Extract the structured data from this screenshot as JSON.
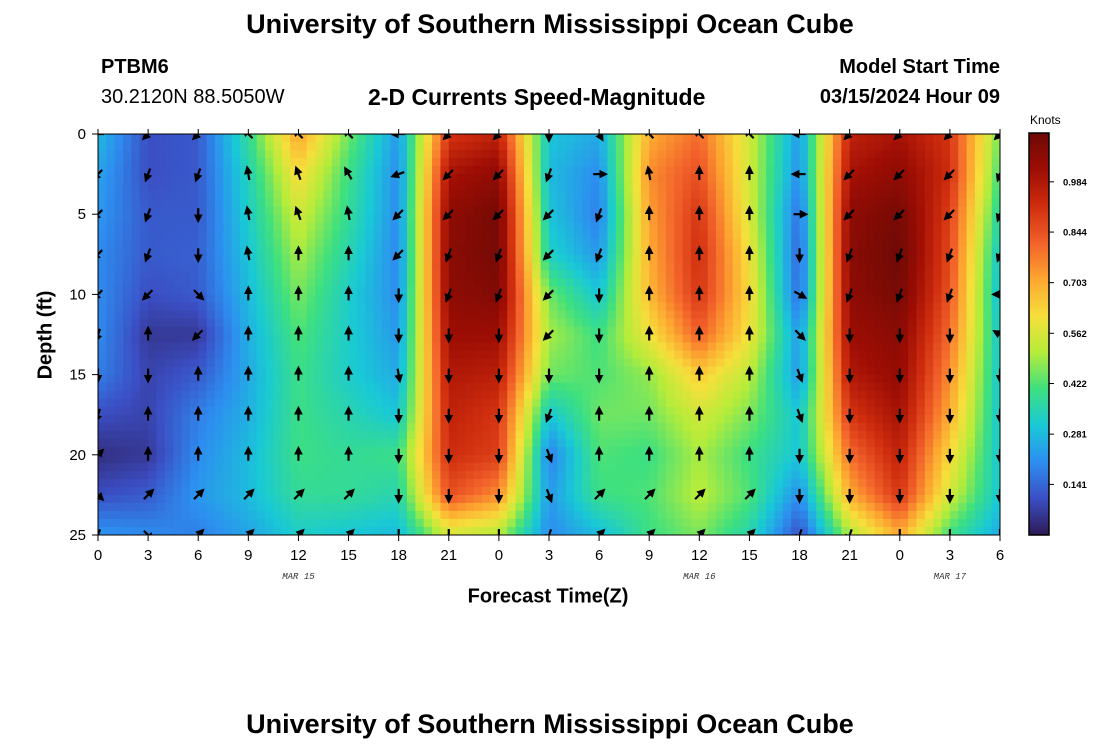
{
  "header": {
    "title": "University of Southern Mississippi Ocean Cube",
    "station": "PTBM6",
    "coords": "30.2120N  88.5050W",
    "subtitle": "2-D Currents Speed-Magnitude",
    "model_start_label": "Model Start Time",
    "model_start_value": "03/15/2024 Hour 09"
  },
  "footer": {
    "title": "University of Southern Mississippi Ocean Cube"
  },
  "colorbar": {
    "unit": "Knots",
    "ticks": [
      "0.141",
      "0.281",
      "0.422",
      "0.562",
      "0.703",
      "0.844",
      "0.984"
    ],
    "colors": [
      "#2e1a55",
      "#3b4fc4",
      "#2d8ef0",
      "#19c9d6",
      "#3ee07f",
      "#b6ec3a",
      "#f6df3b",
      "#fda631",
      "#f2612a",
      "#cf2d0e",
      "#9d0d04",
      "#6e0a06"
    ]
  },
  "chart_data": {
    "type": "heatmap",
    "title": "2-D Currents Speed-Magnitude",
    "xlabel": "Forecast Time(Z)",
    "ylabel": "Depth (ft)",
    "value_unit": "Knots",
    "x_hours": [
      0,
      3,
      6,
      9,
      12,
      15,
      18,
      21,
      24,
      27,
      30,
      33,
      36,
      39,
      42,
      45,
      48,
      51,
      54
    ],
    "xticklabels": [
      "0",
      "3",
      "6",
      "9",
      "12",
      "15",
      "18",
      "21",
      "0",
      "3",
      "6",
      "9",
      "12",
      "15",
      "18",
      "21",
      "0",
      "3",
      "6"
    ],
    "date_labels": [
      {
        "text": "MAR 15",
        "hour": 12
      },
      {
        "text": "MAR 16",
        "hour": 36
      },
      {
        "text": "MAR 17",
        "hour": 51
      }
    ],
    "depth_ft": [
      0,
      2.5,
      5,
      7.5,
      10,
      12.5,
      15,
      17.5,
      20,
      22.5,
      25
    ],
    "yticks": [
      0,
      5,
      10,
      15,
      20,
      25
    ],
    "ylim": [
      25,
      0
    ],
    "xlim": [
      0,
      54
    ],
    "clim": [
      0,
      1.12
    ],
    "speed_knots": [
      [
        0.28,
        0.1,
        0.12,
        0.38,
        0.72,
        0.45,
        0.22,
        0.9,
        0.95,
        0.3,
        0.25,
        0.7,
        0.8,
        0.55,
        0.22,
        0.95,
        1.0,
        0.9,
        0.45
      ],
      [
        0.24,
        0.1,
        0.12,
        0.34,
        0.62,
        0.4,
        0.2,
        1.0,
        1.05,
        0.28,
        0.2,
        0.75,
        0.85,
        0.55,
        0.2,
        1.0,
        1.05,
        0.92,
        0.4
      ],
      [
        0.22,
        0.12,
        0.12,
        0.32,
        0.55,
        0.38,
        0.2,
        1.05,
        1.1,
        0.3,
        0.18,
        0.72,
        0.9,
        0.56,
        0.15,
        1.05,
        1.1,
        0.88,
        0.35
      ],
      [
        0.2,
        0.12,
        0.13,
        0.3,
        0.5,
        0.35,
        0.19,
        1.06,
        1.1,
        0.33,
        0.22,
        0.7,
        0.92,
        0.6,
        0.13,
        1.06,
        1.12,
        0.86,
        0.3
      ],
      [
        0.2,
        0.1,
        0.12,
        0.28,
        0.46,
        0.32,
        0.2,
        1.05,
        1.08,
        0.45,
        0.3,
        0.68,
        0.9,
        0.62,
        0.14,
        1.05,
        1.1,
        0.84,
        0.28
      ],
      [
        0.2,
        0.06,
        0.06,
        0.26,
        0.42,
        0.32,
        0.22,
        1.02,
        1.02,
        0.5,
        0.4,
        0.6,
        0.82,
        0.6,
        0.22,
        1.02,
        1.06,
        0.8,
        0.3
      ],
      [
        0.18,
        0.08,
        0.12,
        0.25,
        0.4,
        0.32,
        0.25,
        0.98,
        0.96,
        0.45,
        0.42,
        0.48,
        0.65,
        0.52,
        0.22,
        0.98,
        1.04,
        0.75,
        0.3
      ],
      [
        0.1,
        0.08,
        0.18,
        0.26,
        0.4,
        0.35,
        0.3,
        0.95,
        0.9,
        0.3,
        0.45,
        0.45,
        0.55,
        0.46,
        0.3,
        0.9,
        1.0,
        0.7,
        0.3
      ],
      [
        0.04,
        0.06,
        0.2,
        0.28,
        0.4,
        0.38,
        0.4,
        0.92,
        0.88,
        0.18,
        0.42,
        0.4,
        0.5,
        0.4,
        0.3,
        0.8,
        0.95,
        0.62,
        0.3
      ],
      [
        0.1,
        0.12,
        0.22,
        0.28,
        0.38,
        0.38,
        0.35,
        0.85,
        0.75,
        0.22,
        0.4,
        0.42,
        0.52,
        0.42,
        0.2,
        0.7,
        0.9,
        0.55,
        0.3
      ],
      [
        0.22,
        0.2,
        0.18,
        0.24,
        0.32,
        0.3,
        0.28,
        0.55,
        0.5,
        0.2,
        0.28,
        0.4,
        0.46,
        0.35,
        0.1,
        0.5,
        0.7,
        0.4,
        0.25
      ]
    ],
    "arrow_direction_deg": [
      [
        270,
        225,
        225,
        315,
        315,
        315,
        270,
        225,
        225,
        180,
        150,
        315,
        315,
        315,
        270,
        225,
        225,
        225,
        225
      ],
      [
        225,
        200,
        200,
        350,
        340,
        330,
        250,
        225,
        225,
        200,
        90,
        350,
        0,
        0,
        270,
        225,
        225,
        225,
        200
      ],
      [
        225,
        200,
        180,
        350,
        340,
        350,
        225,
        225,
        225,
        225,
        200,
        0,
        0,
        0,
        90,
        225,
        225,
        225,
        200
      ],
      [
        225,
        200,
        180,
        350,
        0,
        0,
        225,
        200,
        200,
        225,
        200,
        0,
        0,
        0,
        180,
        200,
        200,
        200,
        200
      ],
      [
        225,
        225,
        135,
        0,
        0,
        0,
        180,
        200,
        200,
        225,
        180,
        0,
        0,
        0,
        120,
        200,
        200,
        200,
        270
      ],
      [
        200,
        0,
        225,
        0,
        0,
        0,
        180,
        180,
        180,
        225,
        180,
        0,
        0,
        0,
        135,
        180,
        180,
        180,
        300
      ],
      [
        180,
        180,
        0,
        0,
        0,
        0,
        170,
        180,
        180,
        180,
        180,
        0,
        0,
        0,
        160,
        180,
        180,
        180,
        180
      ],
      [
        200,
        0,
        0,
        0,
        0,
        0,
        180,
        180,
        180,
        200,
        0,
        0,
        0,
        0,
        160,
        180,
        180,
        180,
        180
      ],
      [
        45,
        0,
        0,
        0,
        0,
        0,
        180,
        180,
        180,
        160,
        0,
        0,
        0,
        0,
        180,
        180,
        180,
        180,
        180
      ],
      [
        135,
        45,
        45,
        45,
        45,
        45,
        180,
        180,
        180,
        160,
        45,
        45,
        45,
        45,
        180,
        180,
        180,
        180,
        180
      ],
      [
        200,
        135,
        45,
        45,
        45,
        45,
        180,
        180,
        180,
        200,
        45,
        45,
        45,
        45,
        200,
        200,
        180,
        180,
        180
      ]
    ]
  }
}
